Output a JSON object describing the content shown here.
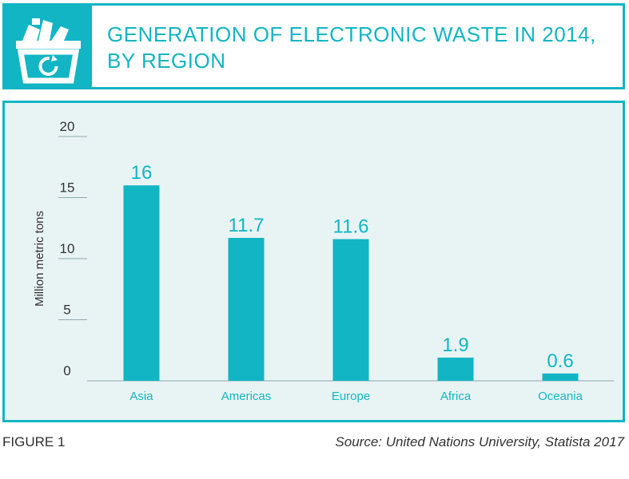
{
  "colors": {
    "accent": "#12b5c4",
    "panel_bg": "#e8f4f4",
    "text": "#333333"
  },
  "header": {
    "icon": "recycling-bin-icon",
    "title_line1": "GENERATION OF ELECTRONIC WASTE IN 2014,",
    "title_line2": "BY REGION"
  },
  "chart_data": {
    "type": "bar",
    "categories": [
      "Asia",
      "Americas",
      "Europe",
      "Africa",
      "Oceania"
    ],
    "values": [
      16,
      11.7,
      11.6,
      1.9,
      0.6
    ],
    "data_labels": [
      "16",
      "11.7",
      "11.6",
      "1.9",
      "0.6"
    ],
    "ylabel": "Million metric tons",
    "xlabel": "",
    "ylim": [
      0,
      20
    ],
    "yticks": [
      0,
      5,
      10,
      15,
      20
    ],
    "grid": "y-axis short ticks only",
    "bar_color": "#12b5c4"
  },
  "footer": {
    "figure_label": "FIGURE 1",
    "source": "Source: United Nations University, Statista 2017"
  }
}
